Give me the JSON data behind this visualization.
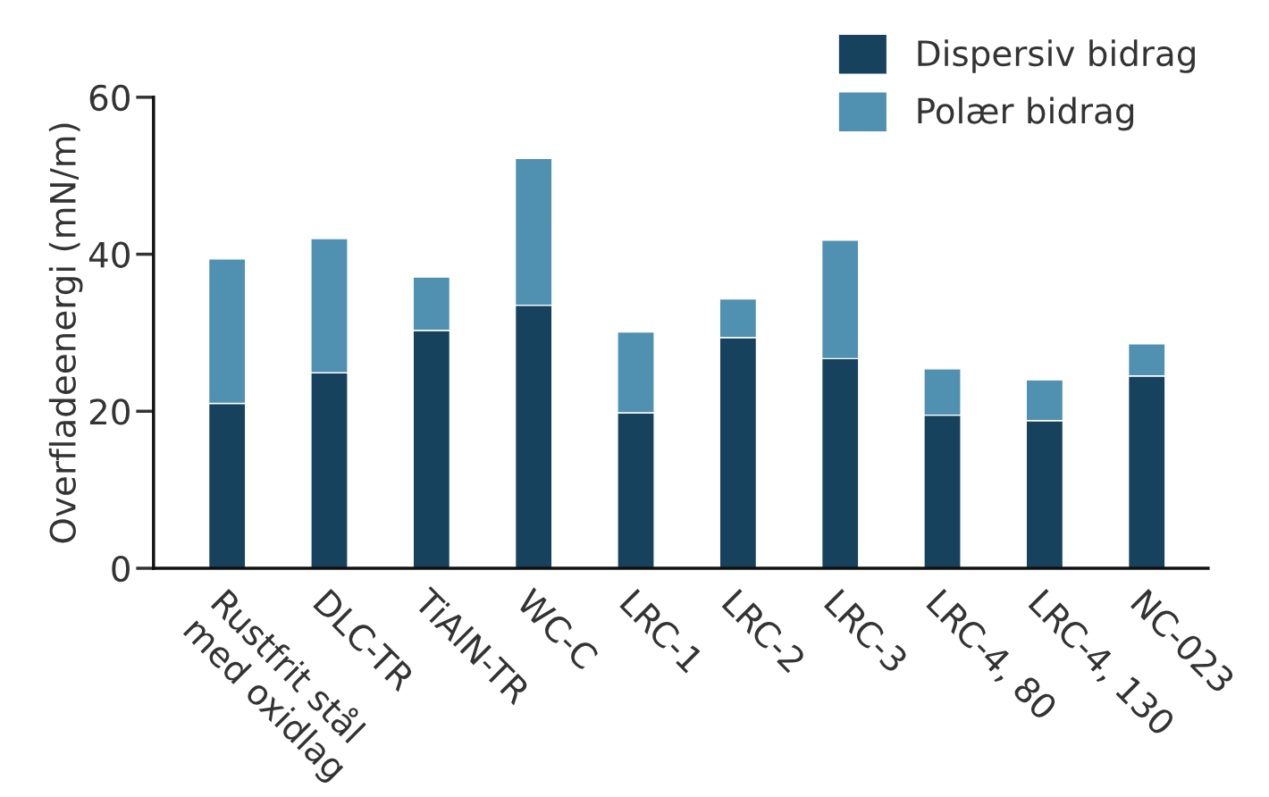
{
  "chart_data": {
    "type": "bar",
    "stacked": true,
    "ylabel": "Overfladeenergi (mN/m)",
    "categories": [
      "Rustfrit stål\nmed oxidlag",
      "DLC-TR",
      "TiAlN-TR",
      "WC-C",
      "LRC-1",
      "LRC-2",
      "LRC-3",
      "LRC-4, 80",
      "LRC-4, 130",
      "NC-023"
    ],
    "series": [
      {
        "name": "Dispersiv bidrag",
        "color": "#17425e",
        "values": [
          21.0,
          24.9,
          30.3,
          33.5,
          19.8,
          29.4,
          26.7,
          19.5,
          18.8,
          24.5
        ]
      },
      {
        "name": "Polær bidrag",
        "color": "#5090b0",
        "values": [
          18.4,
          17.1,
          6.8,
          18.7,
          10.3,
          4.9,
          15.1,
          5.9,
          5.2,
          4.1
        ]
      }
    ],
    "ylim": [
      0,
      60
    ],
    "yticks": [
      0,
      20,
      40,
      60
    ],
    "grid": false,
    "legend": "top right"
  }
}
